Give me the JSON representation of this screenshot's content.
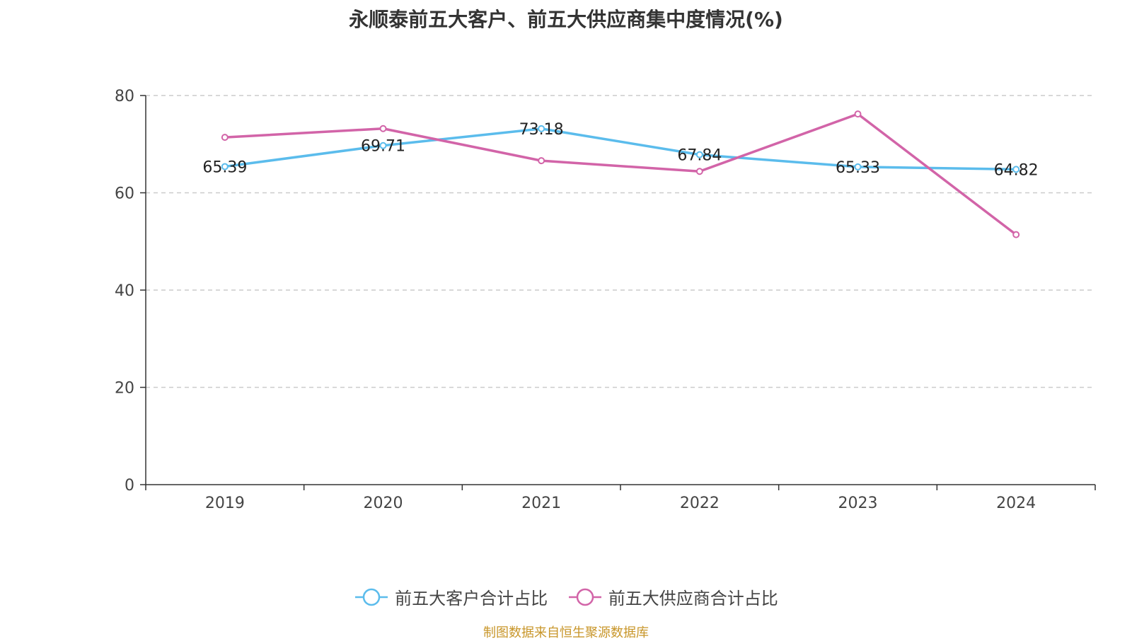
{
  "chart_data": {
    "type": "line",
    "title": "永顺泰前五大客户、前五大供应商集中度情况(%)",
    "categories": [
      "2019",
      "2020",
      "2021",
      "2022",
      "2023",
      "2024"
    ],
    "ylim": [
      0,
      80
    ],
    "yticks": [
      "0",
      "20",
      "40",
      "60",
      "80"
    ],
    "grid": true,
    "legend_position": "bottom",
    "series": [
      {
        "name": "前五大客户合计占比",
        "color": "#5bbcec",
        "values": [
          65.39,
          69.71,
          73.18,
          67.84,
          65.33,
          64.82
        ],
        "labels": [
          "65.39",
          "69.71",
          "73.18",
          "67.84",
          "65.33",
          "64.82"
        ]
      },
      {
        "name": "前五大供应商合计占比",
        "color": "#d264a8",
        "values": [
          71.4,
          73.2,
          66.6,
          64.4,
          76.2,
          51.4
        ]
      }
    ],
    "source": "制图数据来自恒生聚源数据库"
  }
}
